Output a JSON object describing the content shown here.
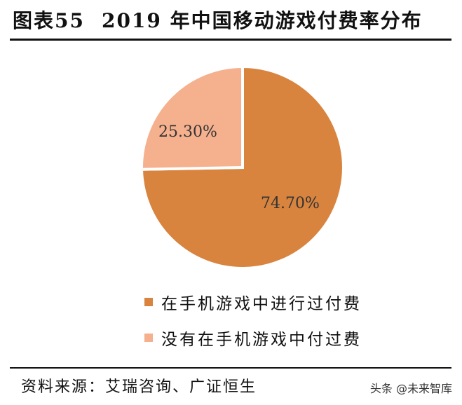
{
  "header": {
    "figure_no": "图表55",
    "title": "2019 年中国移动游戏付费率分布"
  },
  "chart_data": {
    "type": "pie",
    "categories": [
      "在手机游戏中进行过付费",
      "没有在手机游戏中付过费"
    ],
    "values": [
      74.7,
      25.3
    ],
    "data_labels": [
      "74.70%",
      "25.30%"
    ],
    "colors": [
      "#D9843E",
      "#F5B08E"
    ],
    "legend_position": "bottom"
  },
  "footer": {
    "source": "资料来源：艾瑞咨询、广证恒生",
    "watermark": "头条 @未来智库"
  }
}
